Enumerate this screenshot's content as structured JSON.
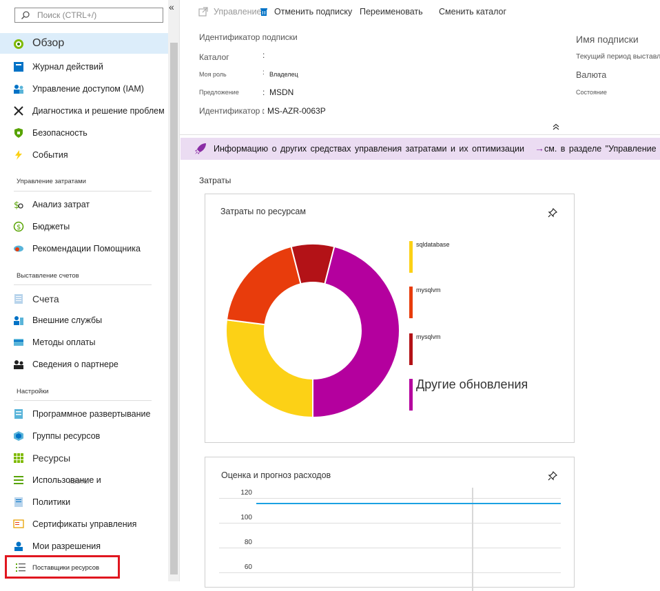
{
  "sidebar": {
    "collapse_glyph": "«",
    "search_placeholder": "Поиск (CTRL+/)",
    "top_items": [
      {
        "label": "Обзор",
        "icon": "overview-icon"
      },
      {
        "label": "Журнал действий",
        "icon": "activity-log-icon"
      },
      {
        "label": "Управление доступом (IAM)",
        "icon": "iam-icon"
      },
      {
        "label": "Диагностика и решение проблем",
        "icon": "wrench-icon"
      },
      {
        "label": "Безопасность",
        "icon": "shield-icon"
      },
      {
        "label": "События",
        "icon": "lightning-icon"
      }
    ],
    "sections": [
      {
        "title": "Управление затратами",
        "items": [
          {
            "label": "Анализ затрат",
            "icon": "cost-analysis-icon"
          },
          {
            "label": "Бюджеты",
            "icon": "budget-icon"
          },
          {
            "label": "Рекомендации Помощника",
            "icon": "advisor-icon"
          }
        ]
      },
      {
        "title": "Выставление счетов",
        "items": [
          {
            "label": "Счета",
            "icon": "invoice-icon"
          },
          {
            "label": "Внешние службы",
            "icon": "external-services-icon"
          },
          {
            "label": "Методы оплаты",
            "icon": "payment-icon"
          },
          {
            "label": "Сведения о партнере",
            "icon": "partner-icon"
          }
        ]
      },
      {
        "title": "Настройки",
        "items": [
          {
            "label": "Программное развертывание",
            "icon": "deployment-icon"
          },
          {
            "label": "Группы ресурсов",
            "icon": "resource-groups-icon"
          },
          {
            "label": "Ресурсы",
            "icon": "resources-icon"
          },
          {
            "label": "Использование и",
            "label2": "квоты",
            "icon": "usage-icon"
          },
          {
            "label": "Политики",
            "icon": "policy-icon"
          },
          {
            "label": "Сертификаты управления",
            "icon": "certificate-icon"
          },
          {
            "label": "Мои разрешения",
            "icon": "permissions-icon"
          },
          {
            "label": "Поставщики ресурсов",
            "icon": "resource-providers-icon"
          }
        ]
      }
    ]
  },
  "toolbar": {
    "manage": "Управление",
    "cancel": "Отменить подписку",
    "rename": "Переименовать",
    "change_dir": "Сменить каталог"
  },
  "essentials": {
    "left": [
      {
        "key": "Идентификатор подписки",
        "value": ""
      },
      {
        "key": "Каталог",
        "value": ""
      },
      {
        "key": "Моя роль",
        "value": "Владелец"
      },
      {
        "key": "Предложение",
        "value": "MSDN"
      },
      {
        "key": "Идентификатор предложения",
        "value": "MS-AZR-0063P"
      }
    ],
    "right": [
      {
        "key": "Имя подписки"
      },
      {
        "key": "Текущий период выставления"
      },
      {
        "key": "Валюта"
      },
      {
        "key": "Состояние"
      }
    ],
    "collapse_glyph": "⌃"
  },
  "banner": {
    "text": "Информацию о других средствах управления затратами и их оптимизации",
    "arrow": "→",
    "text2": "см. в разделе \"Управление"
  },
  "costs": {
    "section_title": "Затраты",
    "by_resource_title": "Затраты по ресурсам",
    "forecast_title": "Оценка и прогноз расходов"
  },
  "chart_data": [
    {
      "type": "pie",
      "title": "Затраты по ресурсам",
      "donut": true,
      "slices": [
        {
          "name": "sqldatabase",
          "value": 27,
          "color": "#fcd116"
        },
        {
          "name": "mysqlvm",
          "value": 19,
          "color": "#e83c0c"
        },
        {
          "name": "mysqlvm",
          "value": 8,
          "color": "#b31217"
        },
        {
          "name": "Другие обновления",
          "value": 46,
          "color": "#b4009e"
        }
      ],
      "legend_position": "right"
    },
    {
      "type": "line",
      "title": "Оценка и прогноз расходов",
      "yticks": [
        120,
        100,
        80,
        60
      ],
      "ylim": [
        60,
        120
      ],
      "series": [
        {
          "values": [
            112,
            112
          ],
          "color": "#1ba1e2"
        }
      ]
    }
  ],
  "colors": {
    "accent": "#0072c6",
    "active_bg": "#dcedfa",
    "banner_bg": "#ebdcf2",
    "highlight": "#e0161f"
  }
}
